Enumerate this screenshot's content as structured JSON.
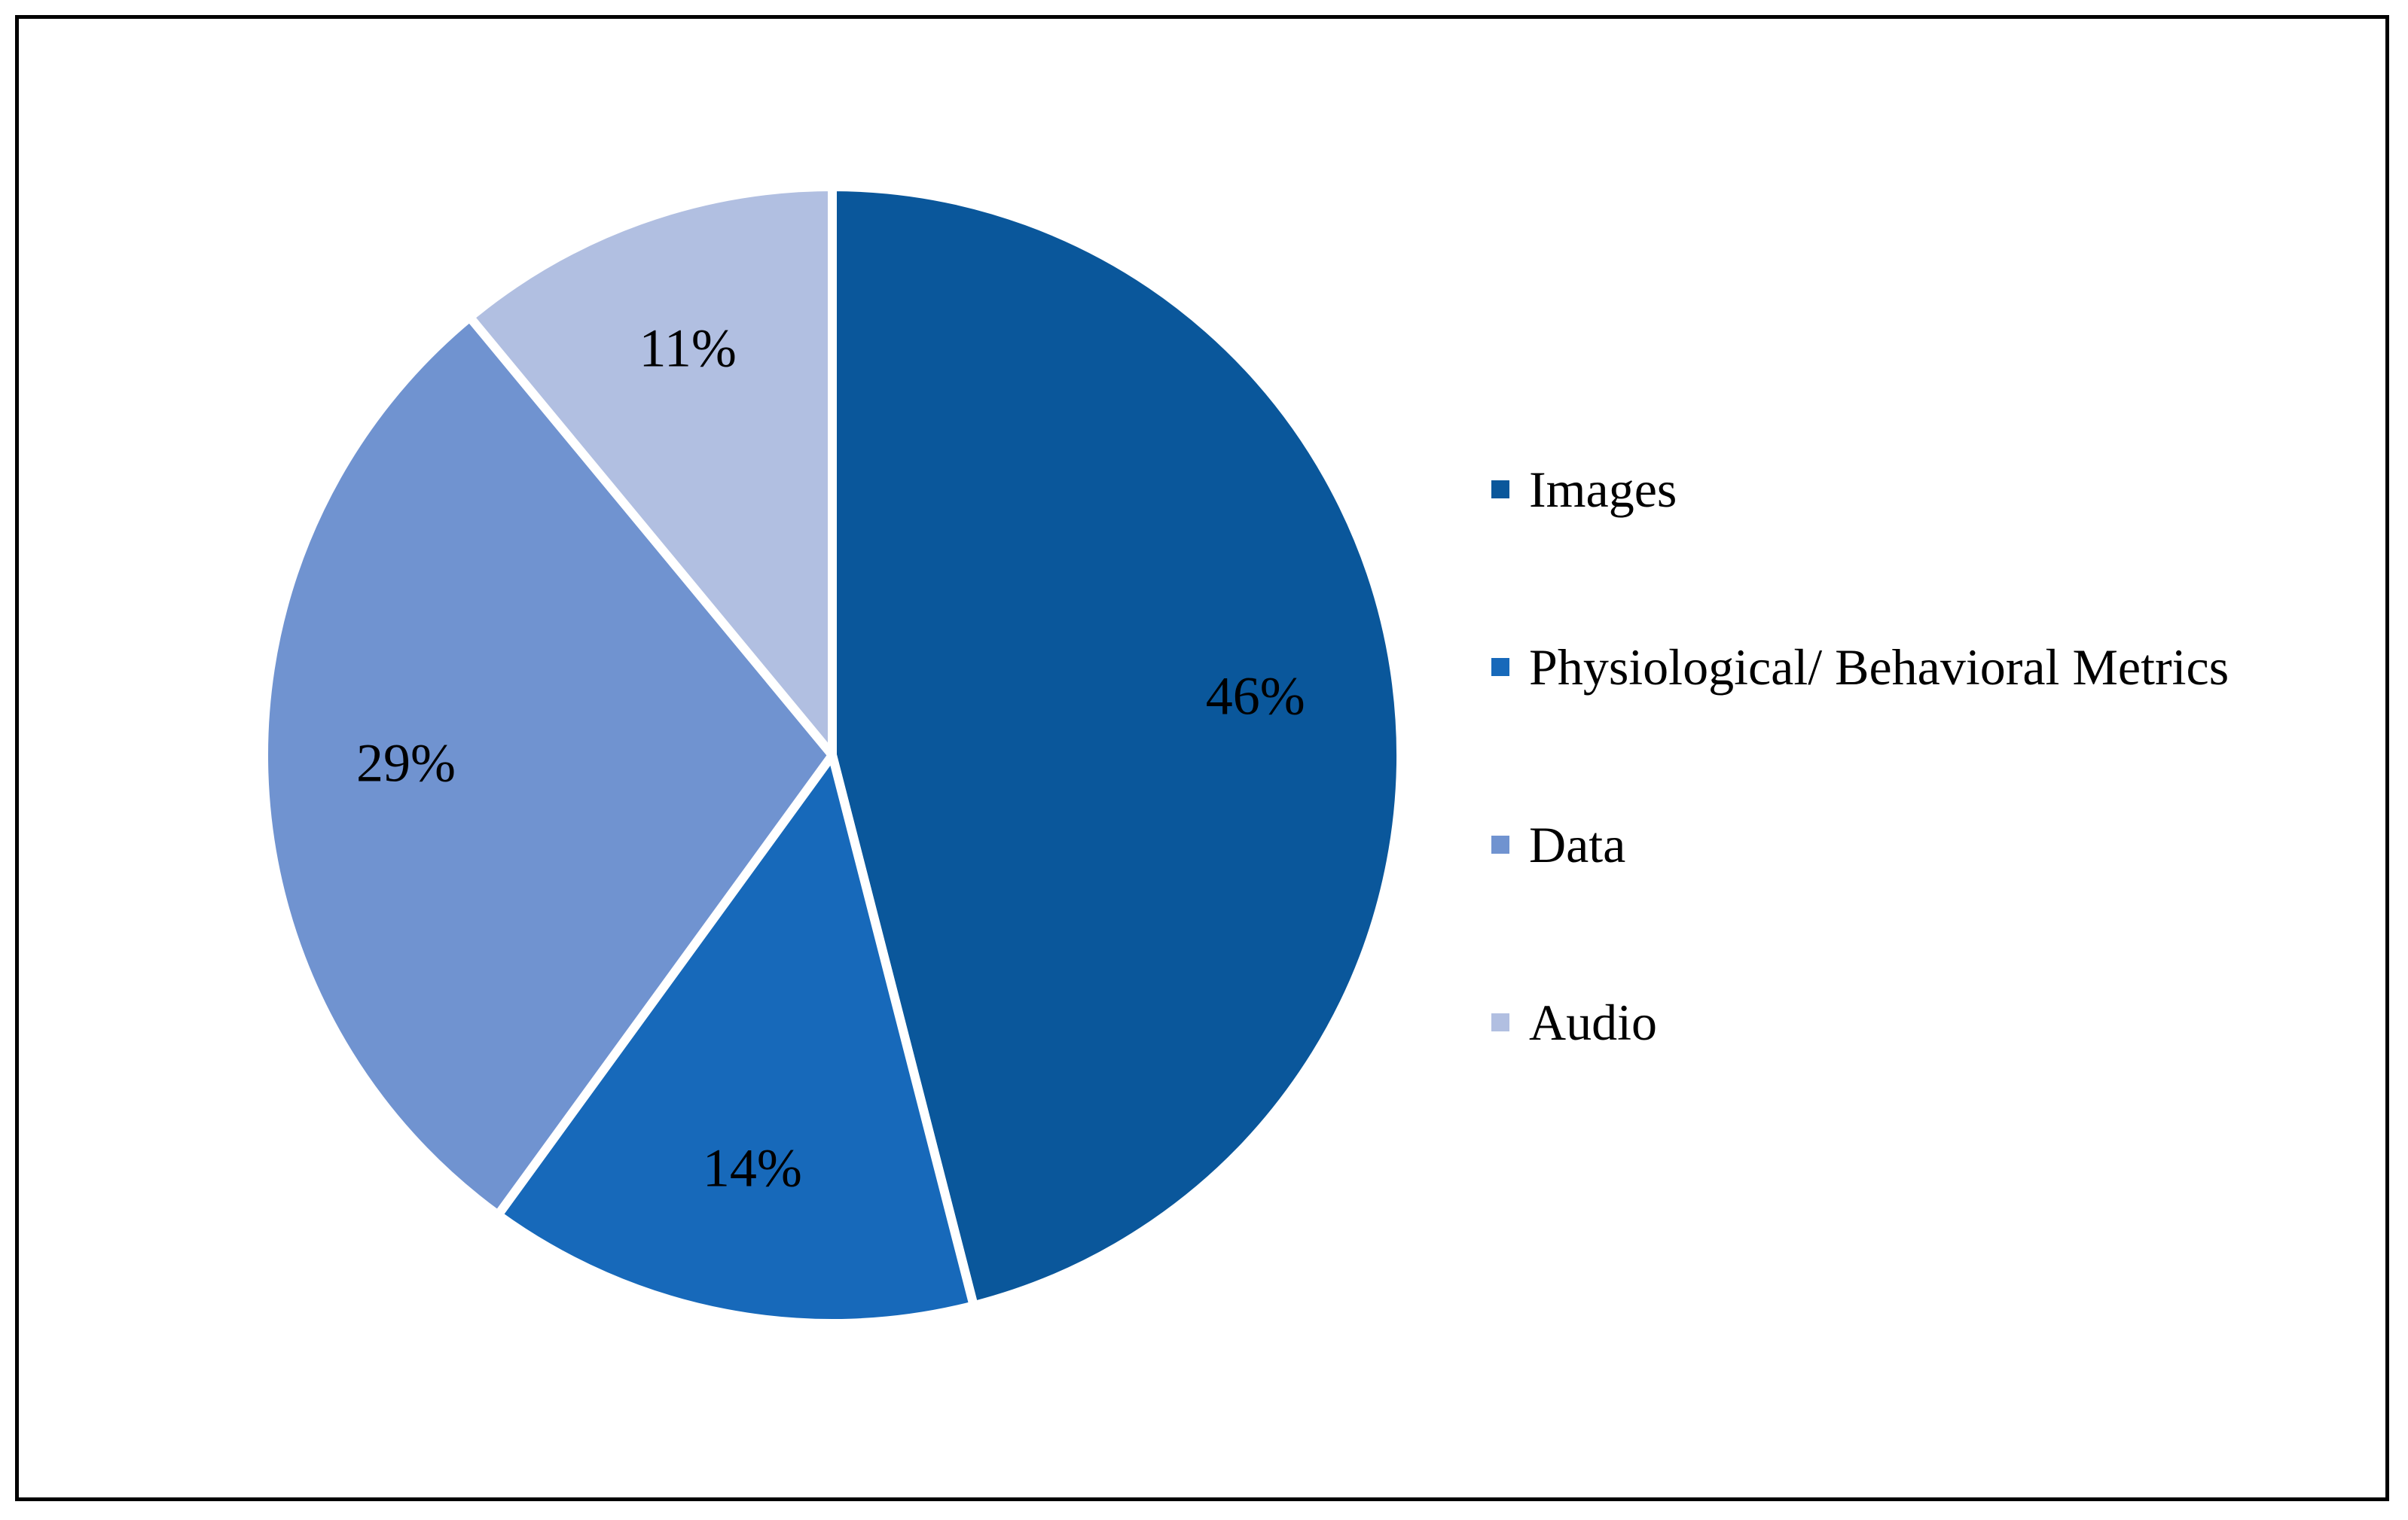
{
  "chart_data": {
    "type": "pie",
    "title": "",
    "slices": [
      {
        "name": "Images",
        "value": 46,
        "label": "46%",
        "color": "#0A579B"
      },
      {
        "name": "Physiological/ Behavioral Metrics",
        "value": 14,
        "label": "14%",
        "color": "#1769BA"
      },
      {
        "name": "Data",
        "value": 29,
        "label": "29%",
        "color": "#7093D0"
      },
      {
        "name": "Audio",
        "value": 11,
        "label": "11%",
        "color": "#B1BFE1"
      }
    ],
    "legend_position": "right",
    "start_angle": "top",
    "direction": "clockwise"
  }
}
